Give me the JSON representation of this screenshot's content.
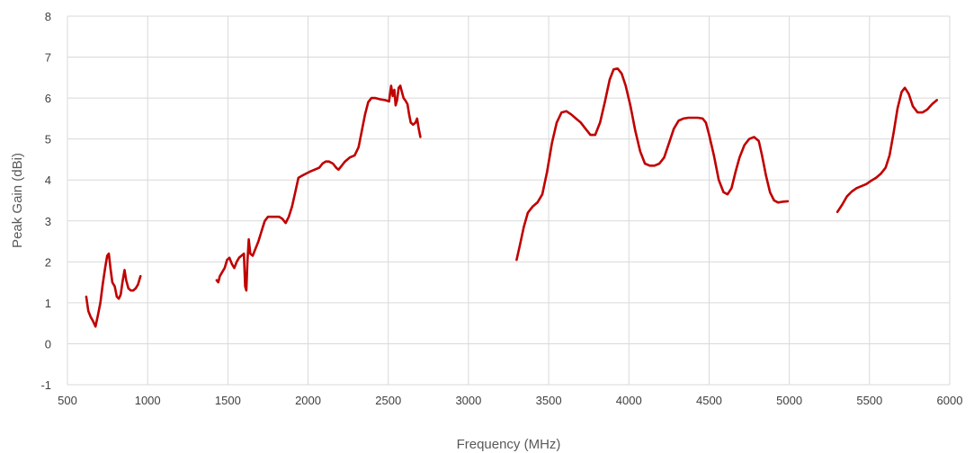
{
  "chart_data": {
    "type": "line",
    "title": "",
    "xlabel": "Frequency (MHz)",
    "ylabel": "Peak Gain (dBi)",
    "xlim": [
      500,
      6000
    ],
    "ylim": [
      -1,
      8
    ],
    "xticks": [
      "500",
      "1000",
      "1500",
      "2000",
      "2500",
      "3000",
      "3500",
      "4000",
      "4500",
      "5000",
      "5500",
      "6000"
    ],
    "yticks": [
      "-1",
      "0",
      "1",
      "2",
      "3",
      "4",
      "5",
      "6",
      "7",
      "8"
    ],
    "grid": true,
    "legend": "none",
    "color": "#c00000",
    "series": [
      {
        "segments": [
          [
            [
              617,
              1.15
            ],
            [
              630,
              0.8
            ],
            [
              645,
              0.65
            ],
            [
              660,
              0.55
            ],
            [
              675,
              0.42
            ],
            [
              690,
              0.7
            ],
            [
              705,
              1.0
            ],
            [
              720,
              1.45
            ],
            [
              735,
              1.85
            ],
            [
              748,
              2.15
            ],
            [
              758,
              2.2
            ],
            [
              768,
              1.85
            ],
            [
              780,
              1.5
            ],
            [
              795,
              1.4
            ],
            [
              808,
              1.15
            ],
            [
              820,
              1.1
            ],
            [
              832,
              1.2
            ],
            [
              845,
              1.55
            ],
            [
              856,
              1.8
            ],
            [
              866,
              1.55
            ],
            [
              880,
              1.35
            ],
            [
              895,
              1.3
            ],
            [
              910,
              1.3
            ],
            [
              925,
              1.35
            ],
            [
              940,
              1.45
            ],
            [
              955,
              1.65
            ]
          ],
          [
            [
              1430,
              1.55
            ],
            [
              1440,
              1.5
            ],
            [
              1450,
              1.65
            ],
            [
              1465,
              1.75
            ],
            [
              1480,
              1.85
            ],
            [
              1495,
              2.05
            ],
            [
              1510,
              2.1
            ],
            [
              1525,
              1.95
            ],
            [
              1540,
              1.85
            ],
            [
              1555,
              2.0
            ],
            [
              1570,
              2.1
            ],
            [
              1585,
              2.15
            ],
            [
              1600,
              2.2
            ],
            [
              1608,
              1.4
            ],
            [
              1615,
              1.3
            ],
            [
              1622,
              2.0
            ],
            [
              1630,
              2.55
            ],
            [
              1640,
              2.2
            ],
            [
              1655,
              2.15
            ],
            [
              1670,
              2.3
            ],
            [
              1690,
              2.5
            ],
            [
              1710,
              2.75
            ],
            [
              1730,
              3.0
            ],
            [
              1750,
              3.1
            ],
            [
              1775,
              3.1
            ],
            [
              1800,
              3.1
            ],
            [
              1820,
              3.1
            ],
            [
              1840,
              3.05
            ],
            [
              1860,
              2.95
            ],
            [
              1880,
              3.1
            ],
            [
              1900,
              3.35
            ],
            [
              1920,
              3.7
            ],
            [
              1940,
              4.05
            ],
            [
              1960,
              4.1
            ],
            [
              1985,
              4.15
            ],
            [
              2010,
              4.2
            ],
            [
              2040,
              4.25
            ],
            [
              2070,
              4.3
            ],
            [
              2090,
              4.4
            ],
            [
              2110,
              4.45
            ],
            [
              2130,
              4.45
            ],
            [
              2155,
              4.4
            ],
            [
              2175,
              4.3
            ],
            [
              2190,
              4.25
            ],
            [
              2210,
              4.35
            ],
            [
              2230,
              4.45
            ],
            [
              2260,
              4.55
            ],
            [
              2290,
              4.6
            ],
            [
              2315,
              4.8
            ],
            [
              2335,
              5.2
            ],
            [
              2355,
              5.6
            ],
            [
              2375,
              5.9
            ],
            [
              2395,
              6.0
            ],
            [
              2420,
              6.0
            ],
            [
              2450,
              5.97
            ],
            [
              2480,
              5.95
            ],
            [
              2505,
              5.92
            ],
            [
              2518,
              6.3
            ],
            [
              2528,
              6.05
            ],
            [
              2538,
              6.2
            ],
            [
              2546,
              5.82
            ],
            [
              2555,
              5.95
            ],
            [
              2565,
              6.25
            ],
            [
              2575,
              6.3
            ],
            [
              2585,
              6.15
            ],
            [
              2595,
              6.0
            ],
            [
              2605,
              5.95
            ],
            [
              2620,
              5.85
            ],
            [
              2630,
              5.6
            ],
            [
              2640,
              5.4
            ],
            [
              2655,
              5.35
            ],
            [
              2670,
              5.4
            ],
            [
              2680,
              5.5
            ],
            [
              2690,
              5.25
            ],
            [
              2700,
              5.05
            ]
          ],
          [
            [
              3300,
              2.05
            ],
            [
              3320,
              2.4
            ],
            [
              3345,
              2.85
            ],
            [
              3370,
              3.2
            ],
            [
              3400,
              3.35
            ],
            [
              3430,
              3.45
            ],
            [
              3460,
              3.65
            ],
            [
              3490,
              4.2
            ],
            [
              3520,
              4.9
            ],
            [
              3550,
              5.4
            ],
            [
              3580,
              5.65
            ],
            [
              3610,
              5.68
            ],
            [
              3640,
              5.6
            ],
            [
              3670,
              5.5
            ],
            [
              3700,
              5.4
            ],
            [
              3730,
              5.25
            ],
            [
              3760,
              5.1
            ],
            [
              3790,
              5.1
            ],
            [
              3820,
              5.4
            ],
            [
              3850,
              5.9
            ],
            [
              3880,
              6.45
            ],
            [
              3905,
              6.7
            ],
            [
              3930,
              6.72
            ],
            [
              3955,
              6.6
            ],
            [
              3980,
              6.3
            ],
            [
              4010,
              5.8
            ],
            [
              4040,
              5.2
            ],
            [
              4070,
              4.7
            ],
            [
              4100,
              4.4
            ],
            [
              4130,
              4.35
            ],
            [
              4160,
              4.35
            ],
            [
              4190,
              4.4
            ],
            [
              4220,
              4.55
            ],
            [
              4250,
              4.9
            ],
            [
              4280,
              5.25
            ],
            [
              4310,
              5.45
            ],
            [
              4340,
              5.5
            ],
            [
              4370,
              5.52
            ],
            [
              4400,
              5.52
            ],
            [
              4430,
              5.52
            ],
            [
              4460,
              5.5
            ],
            [
              4480,
              5.4
            ],
            [
              4500,
              5.1
            ],
            [
              4530,
              4.6
            ],
            [
              4560,
              4.0
            ],
            [
              4590,
              3.7
            ],
            [
              4615,
              3.65
            ],
            [
              4640,
              3.8
            ],
            [
              4665,
              4.2
            ],
            [
              4690,
              4.55
            ],
            [
              4720,
              4.85
            ],
            [
              4750,
              5.0
            ],
            [
              4780,
              5.05
            ],
            [
              4810,
              4.95
            ],
            [
              4830,
              4.6
            ],
            [
              4855,
              4.1
            ],
            [
              4880,
              3.7
            ],
            [
              4905,
              3.5
            ],
            [
              4930,
              3.45
            ],
            [
              4960,
              3.47
            ],
            [
              4990,
              3.48
            ]
          ],
          [
            [
              5300,
              3.22
            ],
            [
              5330,
              3.4
            ],
            [
              5360,
              3.6
            ],
            [
              5390,
              3.72
            ],
            [
              5420,
              3.8
            ],
            [
              5450,
              3.85
            ],
            [
              5480,
              3.9
            ],
            [
              5510,
              3.98
            ],
            [
              5540,
              4.05
            ],
            [
              5570,
              4.15
            ],
            [
              5600,
              4.3
            ],
            [
              5625,
              4.6
            ],
            [
              5650,
              5.15
            ],
            [
              5675,
              5.75
            ],
            [
              5700,
              6.15
            ],
            [
              5720,
              6.25
            ],
            [
              5745,
              6.1
            ],
            [
              5770,
              5.8
            ],
            [
              5800,
              5.65
            ],
            [
              5830,
              5.65
            ],
            [
              5860,
              5.72
            ],
            [
              5890,
              5.85
            ],
            [
              5920,
              5.95
            ]
          ]
        ]
      }
    ]
  }
}
